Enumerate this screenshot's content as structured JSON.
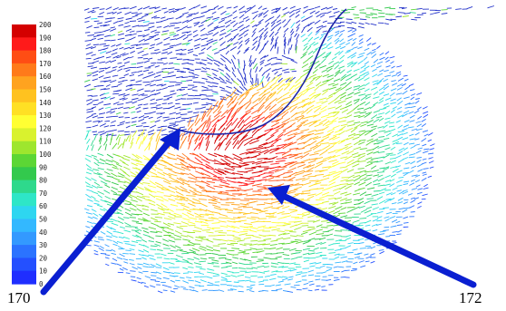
{
  "legend": {
    "ticks": [
      "200",
      "190",
      "180",
      "170",
      "160",
      "150",
      "140",
      "130",
      "120",
      "110",
      "100",
      "90",
      "80",
      "70",
      "60",
      "50",
      "40",
      "30",
      "20",
      "10",
      "0"
    ],
    "colors": [
      "#d40000",
      "#ff1a1a",
      "#ff4d14",
      "#ff7a1a",
      "#ffa31f",
      "#ffc21f",
      "#ffe024",
      "#ffff33",
      "#d9f22e",
      "#9ee62e",
      "#5cd635",
      "#33c94d",
      "#2ed98c",
      "#2ee6c7",
      "#2ed6f0",
      "#33b8ff",
      "#3399ff",
      "#2b73ff",
      "#2450ff",
      "#1f2eff"
    ]
  },
  "callouts": [
    {
      "id": "170",
      "label": "170"
    },
    {
      "id": "172",
      "label": "172"
    }
  ],
  "theme": {
    "arrow_color": "#0a1fd1",
    "vector_high": "#e8131a",
    "vector_low": "#2231c9"
  }
}
